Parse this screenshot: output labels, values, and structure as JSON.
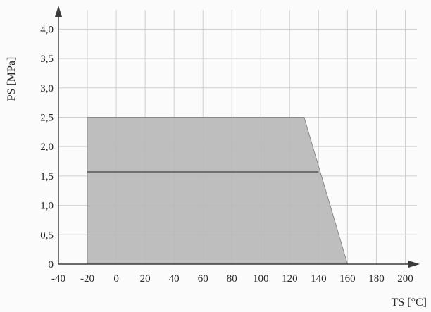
{
  "chart_data": {
    "type": "area",
    "title": "",
    "xlabel": "TS [°C]",
    "ylabel": "PS [MPa]",
    "xlim": [
      -40,
      210
    ],
    "ylim": [
      0,
      4.4
    ],
    "x_ticks": [
      -40,
      -20,
      0,
      20,
      40,
      60,
      80,
      100,
      120,
      140,
      160,
      180,
      200
    ],
    "x_tick_labels": [
      "-40",
      "-20",
      "0",
      "20",
      "40",
      "60",
      "80",
      "100",
      "120",
      "140",
      "160",
      "180",
      "200"
    ],
    "y_ticks": [
      0,
      0.5,
      1.0,
      1.5,
      2.0,
      2.5,
      3.0,
      3.5,
      4.0
    ],
    "y_tick_labels": [
      "0",
      "0,5",
      "1,0",
      "1,5",
      "2,0",
      "2,5",
      "3,0",
      "3,5",
      "4,0"
    ],
    "grid": true,
    "series": [
      {
        "type": "area",
        "x": [
          -20,
          130,
          160,
          -20
        ],
        "y": [
          2.5,
          2.5,
          0,
          0
        ],
        "color": "#b9b9b9"
      },
      {
        "type": "line",
        "x": [
          -20,
          140
        ],
        "y": [
          1.57,
          1.57
        ],
        "color": "#555555"
      }
    ],
    "colors": {
      "area_fill": "#b9b9b9",
      "area_edge": "#8a8a8a",
      "line": "#555555",
      "grid": "#cfcfcf",
      "axis": "#3a3a3a"
    }
  }
}
